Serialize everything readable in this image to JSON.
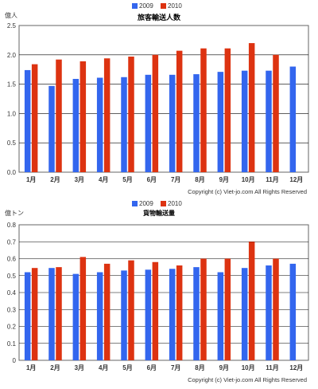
{
  "colors": {
    "series_2009": "#3366ee",
    "series_2010": "#dd3311",
    "axis": "#333333",
    "grid": "#000000",
    "plot_border": "#666666"
  },
  "chart_data": [
    {
      "type": "bar",
      "title": "旅客輸送人数",
      "unit_label": "億人",
      "copyright": "Copyright (c) Viet-jo.com All Rights Reserved",
      "categories": [
        "1月",
        "2月",
        "3月",
        "4月",
        "5月",
        "6月",
        "7月",
        "8月",
        "9月",
        "10月",
        "11月",
        "12月"
      ],
      "series": [
        {
          "name": "2009",
          "values": [
            1.74,
            1.47,
            1.59,
            1.61,
            1.62,
            1.66,
            1.66,
            1.67,
            1.71,
            1.73,
            1.73,
            1.8
          ]
        },
        {
          "name": "2010",
          "values": [
            1.84,
            1.92,
            1.89,
            1.94,
            1.97,
            2.0,
            2.07,
            2.11,
            2.11,
            2.2,
            2.0,
            null
          ]
        }
      ],
      "ylim": [
        0,
        2.5
      ],
      "yticks": [
        "0.0",
        "0.5",
        "1.0",
        "1.5",
        "2.0",
        "2.5"
      ],
      "yticks_values": [
        0,
        0.5,
        1.0,
        1.5,
        2.0,
        2.5
      ],
      "grid": true,
      "legend": "top-center"
    },
    {
      "type": "bar",
      "title": "貨物輸送量",
      "unit_label": "億トン",
      "copyright": "Copyright (c) Viet-jo.com All Rights Reserved",
      "categories": [
        "1月",
        "2月",
        "3月",
        "4月",
        "5月",
        "6月",
        "7月",
        "8月",
        "9月",
        "10月",
        "11月",
        "12月"
      ],
      "series": [
        {
          "name": "2009",
          "values": [
            0.52,
            0.545,
            0.51,
            0.52,
            0.53,
            0.535,
            0.54,
            0.55,
            0.52,
            0.545,
            0.56,
            0.57
          ]
        },
        {
          "name": "2010",
          "values": [
            0.545,
            0.55,
            0.61,
            0.57,
            0.59,
            0.58,
            0.56,
            0.6,
            0.6,
            0.7,
            0.6,
            null
          ]
        }
      ],
      "ylim": [
        0,
        0.8
      ],
      "yticks": [
        "0",
        "0.1",
        "0.2",
        "0.3",
        "0.4",
        "0.5",
        "0.6",
        "0.7",
        "0.8"
      ],
      "yticks_values": [
        0,
        0.1,
        0.2,
        0.3,
        0.4,
        0.5,
        0.6,
        0.7,
        0.8
      ],
      "grid": true,
      "legend": "top-center"
    }
  ]
}
